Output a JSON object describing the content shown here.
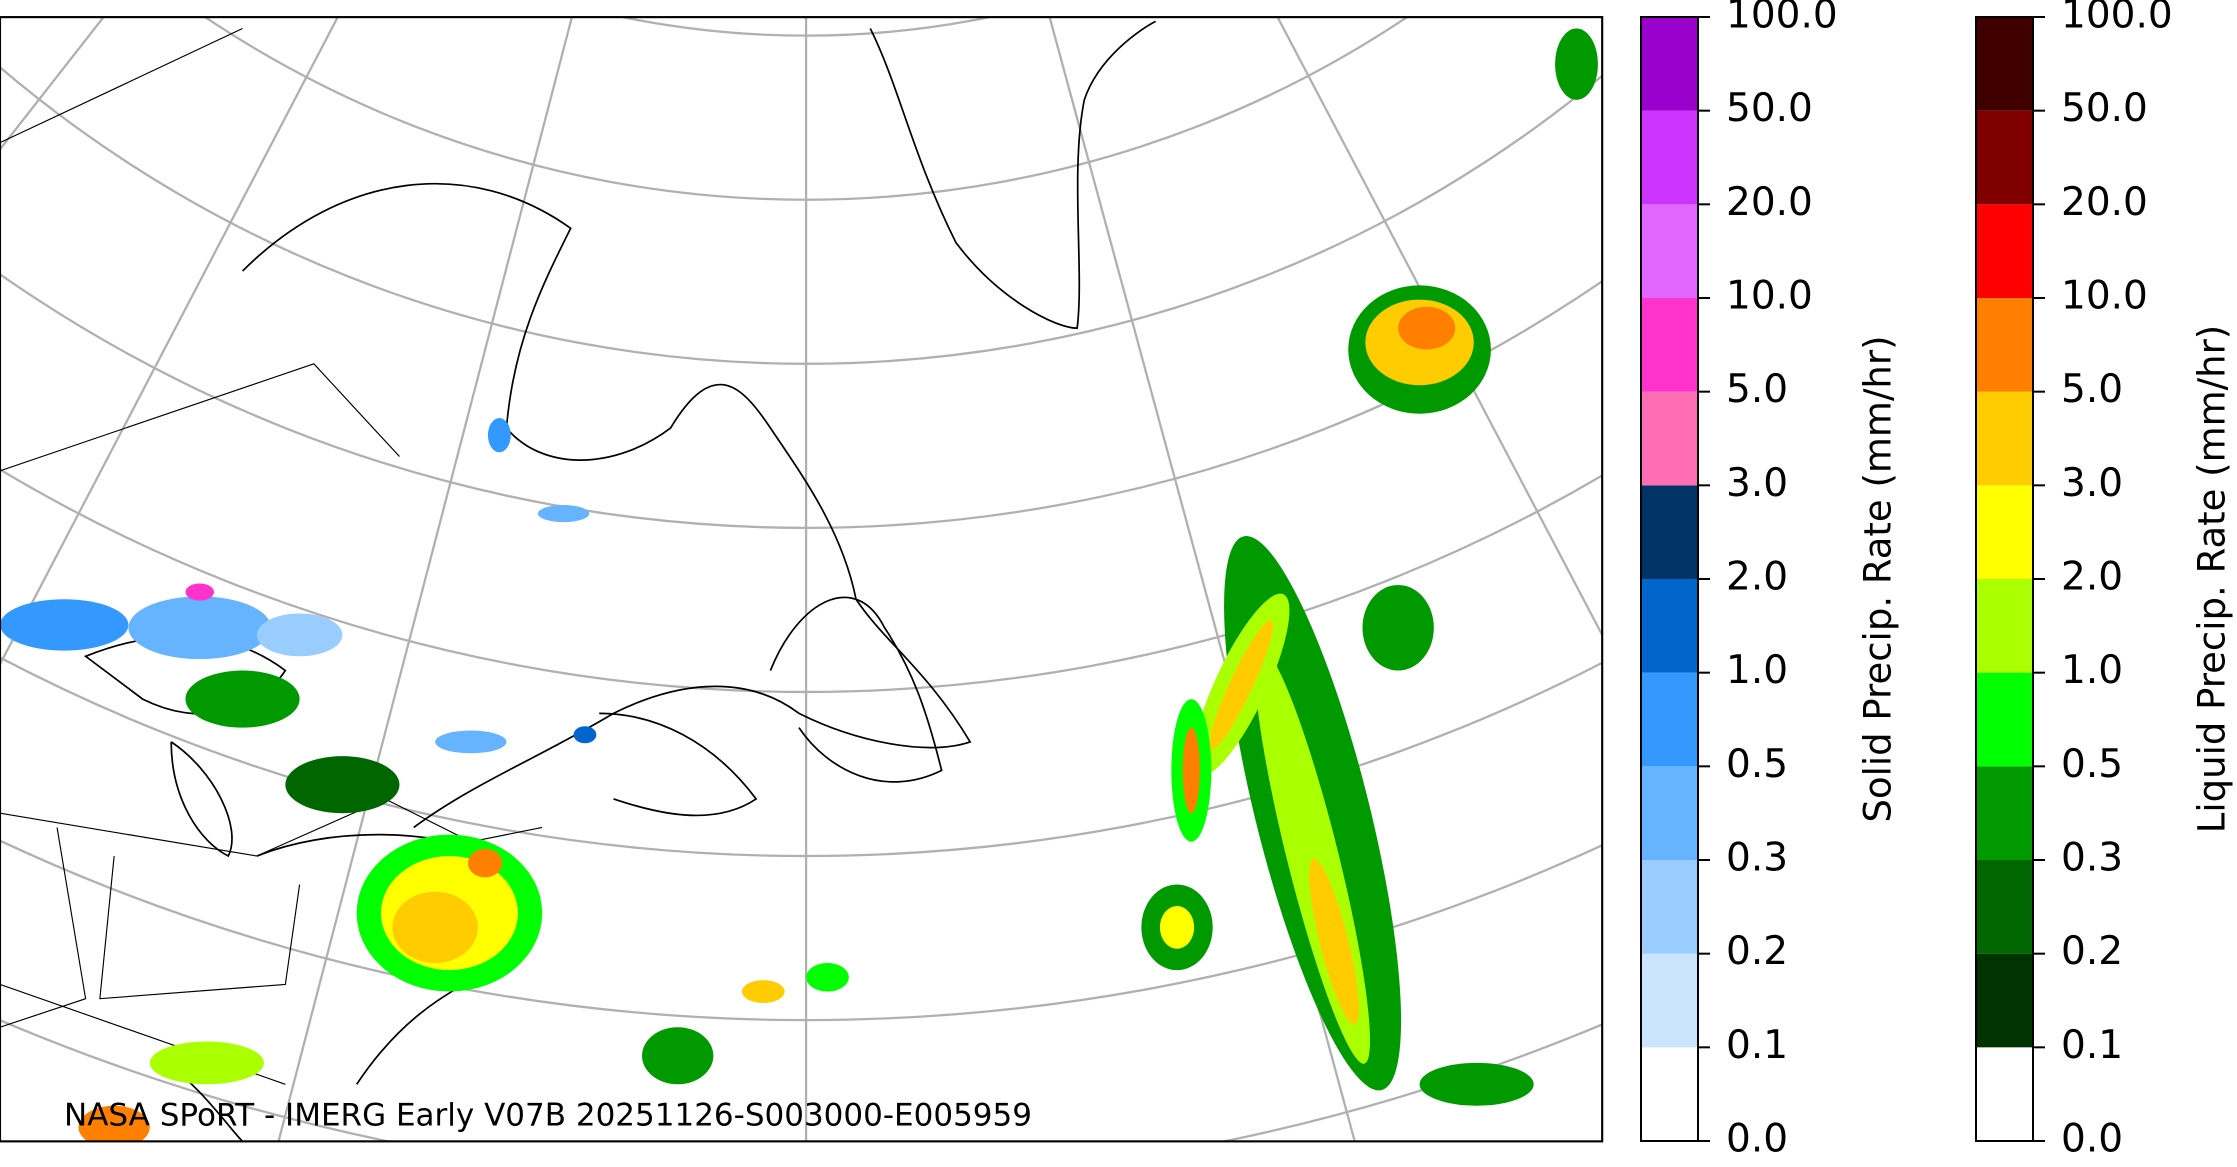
{
  "caption": "NASA SPoRT - IMERG Early V07B 20251126-S003000-E005959",
  "colorbars": [
    {
      "label": "Solid Precip. Rate (mm/hr)",
      "ticks": [
        {
          "value": 0,
          "label": "0.0"
        },
        0.1,
        0.2,
        0.3,
        0.5,
        {
          "value": 1,
          "label": "1.0"
        },
        {
          "value": 2,
          "label": "2.0"
        },
        {
          "value": 3,
          "label": "3.0"
        },
        {
          "value": 5,
          "label": "5.0"
        },
        {
          "value": 10,
          "label": "10.0"
        },
        {
          "value": 20,
          "label": "20.0"
        },
        {
          "value": 50,
          "label": "50.0"
        },
        {
          "value": 100,
          "label": "100.0"
        }
      ],
      "colors": [
        "#ffffff",
        "#cce5ff",
        "#99ccff",
        "#66b3ff",
        "#3399ff",
        "#0066cc",
        "#003366",
        "#ff6eb4",
        "#ff33cc",
        "#e066ff",
        "#cc33ff",
        "#9900cc"
      ]
    },
    {
      "label": "Liquid Precip. Rate (mm/hr)",
      "ticks": [
        {
          "value": 0,
          "label": "0.0"
        },
        0.1,
        0.2,
        0.3,
        0.5,
        {
          "value": 1,
          "label": "1.0"
        },
        {
          "value": 2,
          "label": "2.0"
        },
        {
          "value": 3,
          "label": "3.0"
        },
        {
          "value": 5,
          "label": "5.0"
        },
        {
          "value": 10,
          "label": "10.0"
        },
        {
          "value": 20,
          "label": "20.0"
        },
        {
          "value": 50,
          "label": "50.0"
        },
        {
          "value": 100,
          "label": "100.0"
        }
      ],
      "colors": [
        "#ffffff",
        "#003300",
        "#006600",
        "#009900",
        "#00ff00",
        "#aaff00",
        "#ffff00",
        "#ffcc00",
        "#ff8000",
        "#ff0000",
        "#800000",
        "#400000"
      ]
    }
  ]
}
